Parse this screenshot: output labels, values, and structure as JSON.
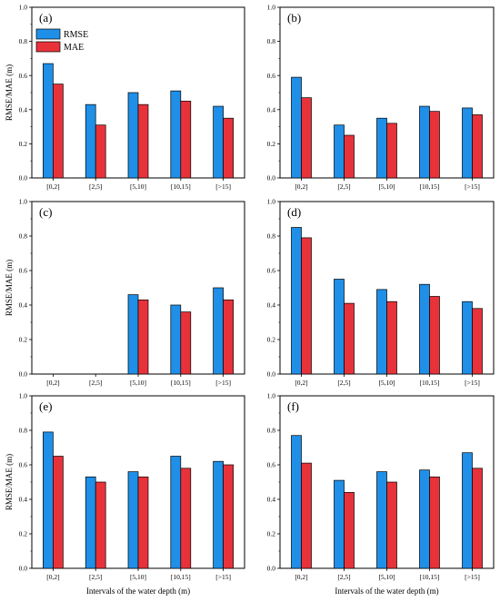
{
  "figure": {
    "xlabel": "Intervals of the water depth (m)",
    "ylabel": "RMSE/MAE (m)"
  },
  "legend": {
    "placement": "top-left of panel (a)",
    "entries": [
      {
        "name": "RMSE",
        "color": "#1f8fe8"
      },
      {
        "name": "MAE",
        "color": "#e8323a"
      }
    ]
  },
  "chart_data": [
    {
      "type": "bar",
      "label": "(a)",
      "categories": [
        "[0,2]",
        "[2,5]",
        "[5,10]",
        "[10,15]",
        "[>15]"
      ],
      "series": [
        {
          "name": "RMSE",
          "values": [
            0.67,
            0.43,
            0.5,
            0.51,
            0.42
          ]
        },
        {
          "name": "MAE",
          "values": [
            0.55,
            0.31,
            0.43,
            0.45,
            0.35
          ]
        }
      ],
      "ylim": [
        0,
        1.0
      ],
      "yticks": [
        "0.0",
        "0.2",
        "0.4",
        "0.6",
        "0.8",
        "1.0"
      ],
      "ylabel": "RMSE/MAE (m)",
      "xlabel": "",
      "grid": false
    },
    {
      "type": "bar",
      "label": "(b)",
      "categories": [
        "[0,2]",
        "[2,5]",
        "[5,10]",
        "[10,15]",
        "[>15]"
      ],
      "series": [
        {
          "name": "RMSE",
          "values": [
            0.59,
            0.31,
            0.35,
            0.42,
            0.41
          ]
        },
        {
          "name": "MAE",
          "values": [
            0.47,
            0.25,
            0.32,
            0.39,
            0.37
          ]
        }
      ],
      "ylim": [
        0,
        1.0
      ],
      "yticks": [
        "0.0",
        "0.2",
        "0.4",
        "0.6",
        "0.8",
        "1.0"
      ],
      "ylabel": "",
      "xlabel": "",
      "grid": false
    },
    {
      "type": "bar",
      "label": "(c)",
      "categories": [
        "[0,2]",
        "[2,5]",
        "[5,10]",
        "[10,15]",
        "[>15]"
      ],
      "series": [
        {
          "name": "RMSE",
          "values": [
            null,
            null,
            0.46,
            0.4,
            0.5
          ]
        },
        {
          "name": "MAE",
          "values": [
            null,
            null,
            0.43,
            0.36,
            0.43
          ]
        }
      ],
      "ylim": [
        0,
        1.0
      ],
      "yticks": [
        "0.0",
        "0.2",
        "0.4",
        "0.6",
        "0.8",
        "1.0"
      ],
      "ylabel": "RMSE/MAE (m)",
      "xlabel": "",
      "grid": false
    },
    {
      "type": "bar",
      "label": "(d)",
      "categories": [
        "[0,2]",
        "[2,5]",
        "[5,10]",
        "[10,15]",
        "[>15]"
      ],
      "series": [
        {
          "name": "RMSE",
          "values": [
            0.85,
            0.55,
            0.49,
            0.52,
            0.42
          ]
        },
        {
          "name": "MAE",
          "values": [
            0.79,
            0.41,
            0.42,
            0.45,
            0.38
          ]
        }
      ],
      "ylim": [
        0,
        1.0
      ],
      "yticks": [
        "0.0",
        "0.2",
        "0.4",
        "0.6",
        "0.8",
        "1.0"
      ],
      "ylabel": "",
      "xlabel": "",
      "grid": false
    },
    {
      "type": "bar",
      "label": "(e)",
      "categories": [
        "[0,2]",
        "[2,5]",
        "[5,10]",
        "[10,15]",
        "[>15]"
      ],
      "series": [
        {
          "name": "RMSE",
          "values": [
            0.79,
            0.53,
            0.56,
            0.65,
            0.62
          ]
        },
        {
          "name": "MAE",
          "values": [
            0.65,
            0.5,
            0.53,
            0.58,
            0.6
          ]
        }
      ],
      "ylim": [
        0,
        1.0
      ],
      "yticks": [
        "0.0",
        "0.2",
        "0.4",
        "0.6",
        "0.8",
        "1.0"
      ],
      "ylabel": "RMSE/MAE (m)",
      "xlabel": "Intervals of the water depth (m)",
      "grid": false
    },
    {
      "type": "bar",
      "label": "(f)",
      "categories": [
        "[0,2]",
        "[2,5]",
        "[5,10]",
        "[10,15]",
        "[>15]"
      ],
      "series": [
        {
          "name": "RMSE",
          "values": [
            0.77,
            0.51,
            0.56,
            0.57,
            0.67
          ]
        },
        {
          "name": "MAE",
          "values": [
            0.61,
            0.44,
            0.5,
            0.53,
            0.58
          ]
        }
      ],
      "ylim": [
        0,
        1.0
      ],
      "yticks": [
        "0.0",
        "0.2",
        "0.4",
        "0.6",
        "0.8",
        "1.0"
      ],
      "ylabel": "",
      "xlabel": "Intervals of the water depth (m)",
      "grid": false
    }
  ]
}
